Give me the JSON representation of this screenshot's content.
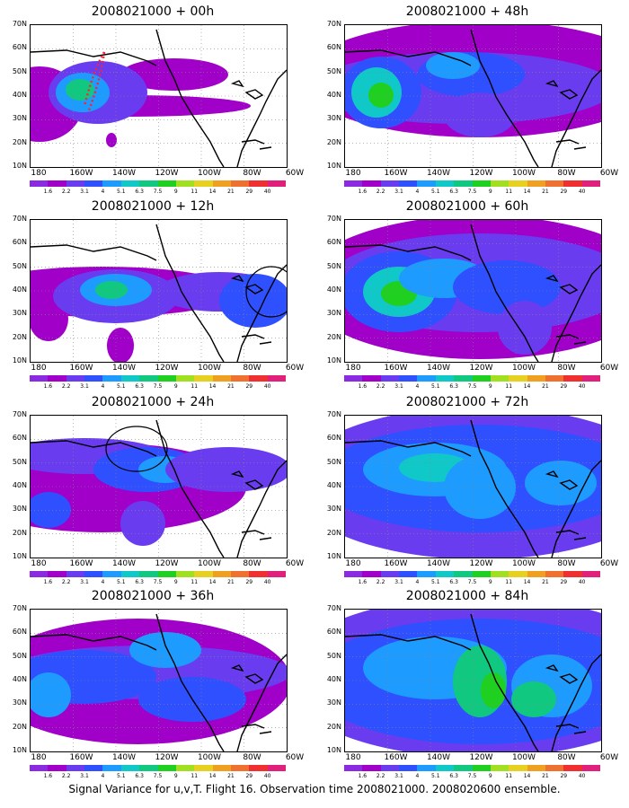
{
  "caption": "Signal Variance for u,v,T. Flight 16. Observation time 2008021000. 2008020600 ensemble.",
  "y_axis_labels": [
    "70N",
    "60N",
    "50N",
    "40N",
    "30N",
    "20N",
    "10N"
  ],
  "x_axis_labels": [
    "180",
    "160W",
    "140W",
    "120W",
    "100W",
    "80W",
    "60W"
  ],
  "colorbar": {
    "labels": [
      "1.6",
      "2.2",
      "3.1",
      "4",
      "5.1",
      "6.3",
      "7.5",
      "9",
      "11",
      "14",
      "21",
      "29",
      "40"
    ],
    "colors": [
      "#8a2be2",
      "#a000c8",
      "#6a3cf0",
      "#2f50ff",
      "#1e9bff",
      "#10c8c8",
      "#10c880",
      "#20d020",
      "#a0e020",
      "#e6d020",
      "#f0a020",
      "#f07030",
      "#f03030",
      "#e0207a"
    ]
  },
  "panels": [
    {
      "id": "p00",
      "title": "2008021000 + 00h",
      "overlay": "red-dotted"
    },
    {
      "id": "p12",
      "title": "2008021000 + 12h",
      "overlay": "circle-east"
    },
    {
      "id": "p24",
      "title": "2008021000 + 24h",
      "overlay": "circle-coast"
    },
    {
      "id": "p36",
      "title": "2008021000 + 36h",
      "overlay": "none"
    },
    {
      "id": "p48",
      "title": "2008021000 + 48h",
      "overlay": "none"
    },
    {
      "id": "p60",
      "title": "2008021000 + 60h",
      "overlay": "none"
    },
    {
      "id": "p72",
      "title": "2008021000 + 72h",
      "overlay": "none"
    },
    {
      "id": "p84",
      "title": "2008021000 + 84h",
      "overlay": "none"
    }
  ]
}
